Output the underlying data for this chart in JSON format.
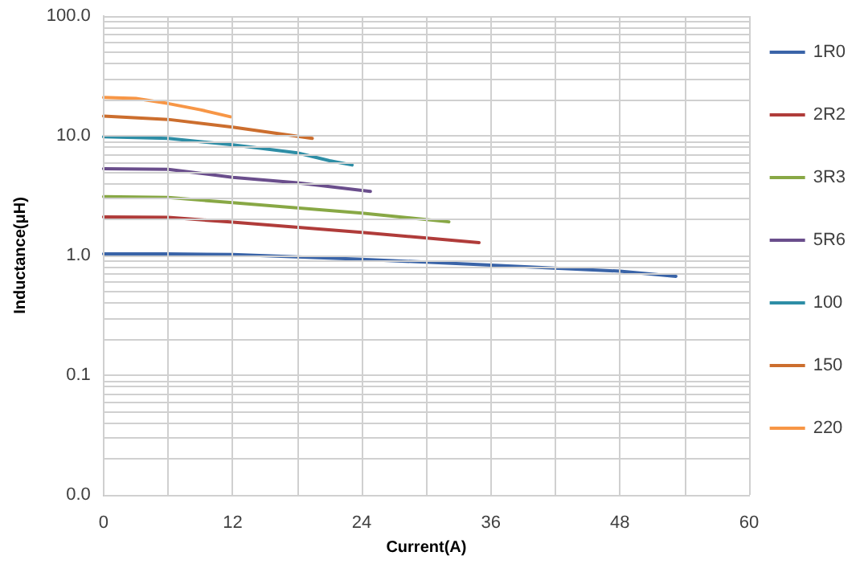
{
  "chart_data": {
    "type": "line",
    "xlabel": "Current(A)",
    "ylabel": "Inductance(μH)",
    "log": "y",
    "grid": true,
    "legend": "right",
    "marker": "none",
    "line_style": "solid",
    "xlim": [
      0,
      60
    ],
    "ylim": [
      0.01,
      100
    ],
    "xticks": [
      0,
      {
        "value": 6,
        "label": null
      },
      12,
      {
        "value": 18,
        "label": null
      },
      24,
      {
        "value": 30,
        "label": null
      },
      36,
      {
        "value": 42,
        "label": null
      },
      48,
      {
        "value": 54,
        "label": null
      },
      60
    ],
    "yticks": [
      {
        "value": 0.01,
        "label": "0.0"
      },
      {
        "value": 0.02,
        "label": null
      },
      {
        "value": 0.03,
        "label": null
      },
      {
        "value": 0.04,
        "label": null
      },
      {
        "value": 0.05,
        "label": null
      },
      {
        "value": 0.06,
        "label": null
      },
      {
        "value": 0.07,
        "label": null
      },
      {
        "value": 0.08,
        "label": null
      },
      {
        "value": 0.09,
        "label": null
      },
      {
        "value": 0.1,
        "label": "0.1"
      },
      {
        "value": 0.2,
        "label": null
      },
      {
        "value": 0.3,
        "label": null
      },
      {
        "value": 0.4,
        "label": null
      },
      {
        "value": 0.5,
        "label": null
      },
      {
        "value": 0.6,
        "label": null
      },
      {
        "value": 0.7,
        "label": null
      },
      {
        "value": 0.8,
        "label": null
      },
      {
        "value": 0.9,
        "label": null
      },
      {
        "value": 1,
        "label": "1.0"
      },
      {
        "value": 2,
        "label": null
      },
      {
        "value": 3,
        "label": null
      },
      {
        "value": 4,
        "label": null
      },
      {
        "value": 5,
        "label": null
      },
      {
        "value": 6,
        "label": null
      },
      {
        "value": 7,
        "label": null
      },
      {
        "value": 8,
        "label": null
      },
      {
        "value": 9,
        "label": null
      },
      {
        "value": 10,
        "label": "10.0"
      },
      {
        "value": 20,
        "label": null
      },
      {
        "value": 30,
        "label": null
      },
      {
        "value": 40,
        "label": null
      },
      {
        "value": 50,
        "label": null
      },
      {
        "value": 60,
        "label": null
      },
      {
        "value": 70,
        "label": null
      },
      {
        "value": 80,
        "label": null
      },
      {
        "value": 90,
        "label": null
      },
      {
        "value": 100,
        "label": "100.0"
      }
    ],
    "series": [
      {
        "name": "1R0",
        "color": "#3a64a8",
        "x": [
          0,
          6,
          12,
          24,
          36,
          48,
          53.2
        ],
        "values": [
          1.03,
          1.03,
          1.02,
          0.93,
          0.83,
          0.74,
          0.67
        ]
      },
      {
        "name": "2R2",
        "color": "#b03c3a",
        "x": [
          0,
          6,
          12,
          24,
          34.9
        ],
        "values": [
          2.1,
          2.08,
          1.9,
          1.56,
          1.28
        ]
      },
      {
        "name": "3R3",
        "color": "#88a845",
        "x": [
          0,
          6,
          12,
          24,
          32.1
        ],
        "values": [
          3.1,
          3.05,
          2.76,
          2.26,
          1.91
        ]
      },
      {
        "name": "5R6",
        "color": "#6a4e8c",
        "x": [
          0,
          6,
          12,
          18,
          24.8
        ],
        "values": [
          5.3,
          5.25,
          4.5,
          4.05,
          3.43
        ]
      },
      {
        "name": "100",
        "color": "#2e8ea6",
        "x": [
          0,
          6,
          12,
          18,
          21,
          23.1
        ],
        "values": [
          9.8,
          9.5,
          8.4,
          7.2,
          6.2,
          5.7
        ]
      },
      {
        "name": "150",
        "color": "#cc6e2e",
        "x": [
          0,
          6,
          12,
          19.4
        ],
        "values": [
          14.6,
          13.7,
          11.8,
          9.5
        ]
      },
      {
        "name": "220",
        "color": "#f79646",
        "x": [
          0,
          3,
          6,
          9,
          11.8
        ],
        "values": [
          20.9,
          20.5,
          18.6,
          16.5,
          14.4
        ]
      }
    ]
  }
}
